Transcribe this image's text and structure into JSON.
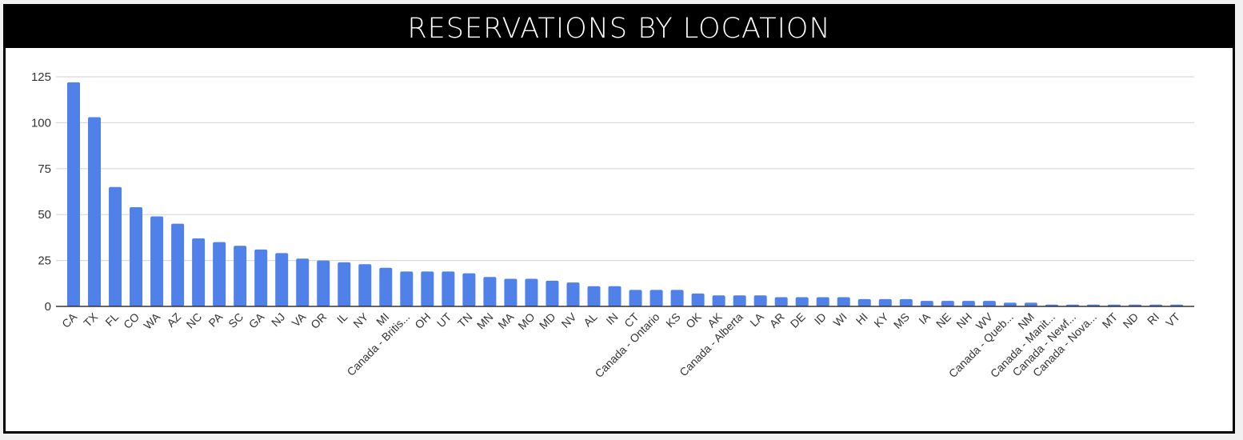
{
  "chart_data": {
    "type": "bar",
    "title": "RESERVATIONS BY LOCATION",
    "xlabel": "",
    "ylabel": "",
    "ylim": [
      0,
      125
    ],
    "yticks": [
      0,
      25,
      50,
      75,
      100,
      125
    ],
    "grid": true,
    "bar_color": "#4f81e8",
    "categories": [
      "CA",
      "TX",
      "FL",
      "CO",
      "WA",
      "AZ",
      "NC",
      "PA",
      "SC",
      "GA",
      "NJ",
      "VA",
      "OR",
      "IL",
      "NY",
      "MI",
      "Canada - Britis...",
      "OH",
      "UT",
      "TN",
      "MN",
      "MA",
      "MO",
      "MD",
      "NV",
      "AL",
      "IN",
      "CT",
      "Canada - Ontario",
      "KS",
      "OK",
      "AK",
      "Canada - Alberta",
      "LA",
      "AR",
      "DE",
      "ID",
      "WI",
      "HI",
      "KY",
      "MS",
      "IA",
      "NE",
      "NH",
      "WV",
      "Canada - Queb...",
      "NM",
      "Canada - Manit...",
      "Canada - Newf...",
      "Canada - Nova...",
      "MT",
      "ND",
      "RI",
      "VT"
    ],
    "values": [
      122,
      103,
      65,
      54,
      49,
      45,
      37,
      35,
      33,
      31,
      29,
      26,
      25,
      24,
      23,
      21,
      19,
      19,
      19,
      18,
      16,
      15,
      15,
      14,
      13,
      11,
      11,
      9,
      9,
      9,
      7,
      6,
      6,
      6,
      5,
      5,
      5,
      5,
      4,
      4,
      4,
      3,
      3,
      3,
      3,
      2,
      2,
      1,
      1,
      1,
      1,
      1,
      1,
      1
    ]
  }
}
